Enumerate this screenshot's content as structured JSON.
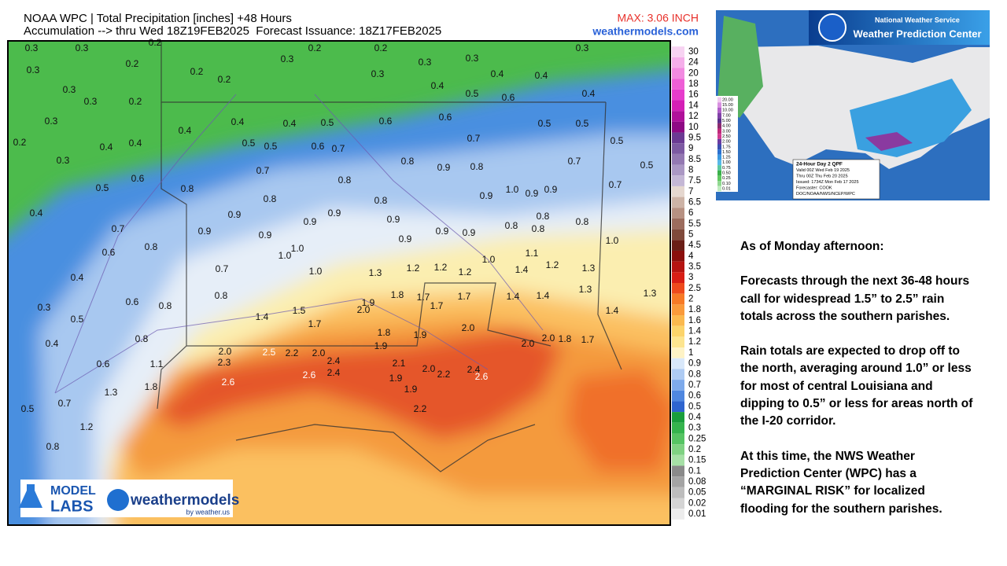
{
  "header": {
    "title": "NOAA WPC | Total Precipitation [inches] +48 Hours",
    "subtitle": "Accumulation --> thru Wed 18Z19FEB2025  Forecast Issuance: 18Z17FEB2025",
    "max": "MAX: 3.06 INCH",
    "site": "weathermodels.com"
  },
  "scale": {
    "values": [
      30,
      24,
      20,
      18,
      16,
      14,
      12,
      10,
      9.5,
      9,
      8.5,
      8,
      7.5,
      7,
      6.5,
      6,
      5.5,
      5,
      4.5,
      4,
      3.5,
      3,
      2.5,
      2,
      1.8,
      1.6,
      1.4,
      1.2,
      1,
      0.9,
      0.8,
      0.7,
      0.6,
      0.5,
      0.4,
      0.3,
      0.25,
      0.2,
      0.15,
      0.1,
      0.08,
      0.05,
      0.02,
      0.01
    ],
    "colors": [
      "#f7d3f2",
      "#f5aeea",
      "#f28ae1",
      "#ee5fd6",
      "#e63ccc",
      "#d41fb6",
      "#b0119a",
      "#8e0a84",
      "#6b3a93",
      "#7d5aa2",
      "#9479b2",
      "#ab98c4",
      "#c4b7d5",
      "#e5d7cf",
      "#cdb3a6",
      "#b79182",
      "#9c6c5d",
      "#7f4a3b",
      "#6a1e17",
      "#8b0f0c",
      "#b51411",
      "#d81e15",
      "#ee4a1c",
      "#f77a26",
      "#fa9a3a",
      "#fbb94e",
      "#fcd46a",
      "#fde58f",
      "#fef3c6",
      "#d9e8fa",
      "#aecbf3",
      "#7eaaeb",
      "#4f87e0",
      "#2e64cf",
      "#1a9e3c",
      "#35b44d",
      "#56c463",
      "#7fd282",
      "#a6e0a6",
      "#8a8a8a",
      "#a4a4a4",
      "#bdbdbd",
      "#d4d4d4",
      "#ececec"
    ]
  },
  "map_labels": [
    "0.3",
    "0.3",
    "0.2",
    "0.2",
    "0.2",
    "0.3",
    "0.3",
    "0.3",
    "0.3",
    "0.2",
    "0.2",
    "0.2",
    "0.3",
    "0.3",
    "0.4",
    "0.4",
    "0.3",
    "0.3",
    "0.2",
    "0.4",
    "0.5",
    "0.6",
    "0.4",
    "0.3",
    "0.4",
    "0.4",
    "0.4",
    "0.5",
    "0.6",
    "0.6",
    "0.5",
    "0.5",
    "0.2",
    "0.4",
    "0.4",
    "0.5",
    "0.5",
    "0.6",
    "0.7",
    "0.7",
    "0.5",
    "0.3",
    "0.7",
    "0.8",
    "0.9",
    "0.8",
    "0.7",
    "0.5",
    "0.5",
    "0.6",
    "0.8",
    "0.8",
    "1.0",
    "0.9",
    "0.9",
    "0.7",
    "0.4",
    "0.9",
    "0.8",
    "0.9",
    "0.8",
    "0.9",
    "0.8",
    "0.7",
    "0.9",
    "0.9",
    "0.9",
    "0.8",
    "0.8",
    "0.8",
    "0.6",
    "0.8",
    "0.9",
    "0.9",
    "0.9",
    "0.9",
    "1.0",
    "0.7",
    "1.0",
    "1.0",
    "1.0",
    "1.1",
    "1.2",
    "0.4",
    "1.0",
    "1.3",
    "1.2",
    "1.2",
    "1.2",
    "1.4",
    "1.3",
    "0.8",
    "1.8",
    "1.7",
    "1.7",
    "1.4",
    "1.4",
    "1.3",
    "1.3",
    "0.3",
    "0.6",
    "0.8",
    "1.5",
    "1.9",
    "2.0",
    "1.7",
    "1.4",
    "0.5",
    "1.4",
    "1.7",
    "1.8",
    "2.0",
    "0.4",
    "0.8",
    "1.9",
    "1.9",
    "2.0",
    "2.0",
    "1.8",
    "1.7",
    "0.6",
    "2.0",
    "2.5",
    "2.2",
    "2.0",
    "1.1",
    "2.3",
    "2.4",
    "2.1",
    "2.0",
    "2.4",
    "2.6",
    "2.6",
    "2.4",
    "1.9",
    "2.2",
    "2.6",
    "1.8",
    "1.3",
    "1.9",
    "0.7",
    "0.5",
    "1.2",
    "2.2",
    "0.8"
  ],
  "inset": {
    "org": "National Weather Service",
    "center": "Weather Prediction Center",
    "legend": [
      "20.00",
      "15.00",
      "10.00",
      "7.00",
      "5.00",
      "4.00",
      "3.00",
      "2.50",
      "2.00",
      "1.75",
      "1.50",
      "1.25",
      "1.00",
      "0.75",
      "0.50",
      "0.25",
      "0.10",
      "0.01"
    ],
    "legend_colors": [
      "#f0c8f0",
      "#d890e0",
      "#b060c8",
      "#8040a8",
      "#5a2f8a",
      "#8b2a6f",
      "#c02a7a",
      "#d03a90",
      "#6a3aa0",
      "#3a4fb0",
      "#2a70d0",
      "#3a98e0",
      "#58b8e8",
      "#5cc8a0",
      "#3ab04a",
      "#60c860",
      "#90d890",
      "#c0ecc0"
    ],
    "info": [
      "24-Hour Day 2 QPF",
      "Valid 00Z Wed Feb 19 2025",
      "Thru 00Z Thu Feb 20 2025",
      "Issued: 1734Z Mon Feb 17 2025",
      "Forecaster: COOK",
      "DOC/NOAA/NWS/NCEP/WPC"
    ]
  },
  "logos": {
    "model": "MODEL",
    "labs": "LABS",
    "brand": "weathermodels",
    "by": "by weather.us"
  },
  "notes": [
    "As of Monday afternoon:",
    "Forecasts through the next 36-48 hours call for widespread 1.5” to 2.5” rain totals across the southern parishes.",
    "Rain totals are expected to drop off to the north, averaging around 1.0” or less for most of central Louisiana and dipping to 0.5” or less for areas north of the I-20 corridor.",
    "At this time, the NWS Weather Prediction Center (WPC) has a “MARGINAL RISK” for localized flooding for the southern parishes."
  ]
}
